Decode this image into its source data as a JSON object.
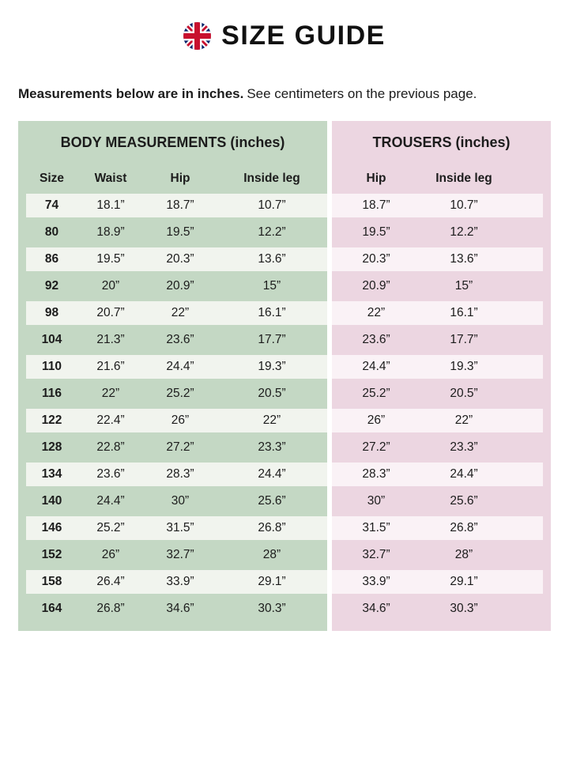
{
  "page": {
    "title": "SIZE GUIDE",
    "note_bold": "Measurements below are in inches.",
    "note_regular": "See centimeters on the previous page."
  },
  "table": {
    "body_section_title": "BODY MEASUREMENTS (inches)",
    "trousers_section_title": "TROUSERS (inches)",
    "body_columns": {
      "size": "Size",
      "waist": "Waist",
      "hip": "Hip",
      "inside_leg": "Inside leg"
    },
    "trousers_columns": {
      "hip": "Hip",
      "inside_leg": "Inside leg"
    },
    "rows": [
      {
        "size": "74",
        "waist": "18.1”",
        "hip": "18.7”",
        "inside_leg": "10.7”",
        "t_hip": "18.7”",
        "t_inside_leg": "10.7”"
      },
      {
        "size": "80",
        "waist": "18.9”",
        "hip": "19.5”",
        "inside_leg": "12.2”",
        "t_hip": "19.5”",
        "t_inside_leg": "12.2”"
      },
      {
        "size": "86",
        "waist": "19.5”",
        "hip": "20.3”",
        "inside_leg": "13.6”",
        "t_hip": "20.3”",
        "t_inside_leg": "13.6”"
      },
      {
        "size": "92",
        "waist": "20”",
        "hip": "20.9”",
        "inside_leg": "15”",
        "t_hip": "20.9”",
        "t_inside_leg": "15”"
      },
      {
        "size": "98",
        "waist": "20.7”",
        "hip": "22”",
        "inside_leg": "16.1”",
        "t_hip": "22”",
        "t_inside_leg": "16.1”"
      },
      {
        "size": "104",
        "waist": "21.3”",
        "hip": "23.6”",
        "inside_leg": "17.7”",
        "t_hip": "23.6”",
        "t_inside_leg": "17.7”"
      },
      {
        "size": "110",
        "waist": "21.6”",
        "hip": "24.4”",
        "inside_leg": "19.3”",
        "t_hip": "24.4”",
        "t_inside_leg": "19.3”"
      },
      {
        "size": "116",
        "waist": "22”",
        "hip": "25.2”",
        "inside_leg": "20.5”",
        "t_hip": "25.2”",
        "t_inside_leg": "20.5”"
      },
      {
        "size": "122",
        "waist": "22.4”",
        "hip": "26”",
        "inside_leg": "22”",
        "t_hip": "26”",
        "t_inside_leg": "22”"
      },
      {
        "size": "128",
        "waist": "22.8”",
        "hip": "27.2”",
        "inside_leg": "23.3”",
        "t_hip": "27.2”",
        "t_inside_leg": "23.3”"
      },
      {
        "size": "134",
        "waist": "23.6”",
        "hip": "28.3”",
        "inside_leg": "24.4”",
        "t_hip": "28.3”",
        "t_inside_leg": "24.4”"
      },
      {
        "size": "140",
        "waist": "24.4”",
        "hip": "30”",
        "inside_leg": "25.6”",
        "t_hip": "30”",
        "t_inside_leg": "25.6”"
      },
      {
        "size": "146",
        "waist": "25.2”",
        "hip": "31.5”",
        "inside_leg": "26.8”",
        "t_hip": "31.5”",
        "t_inside_leg": "26.8”"
      },
      {
        "size": "152",
        "waist": "26”",
        "hip": "32.7”",
        "inside_leg": "28”",
        "t_hip": "32.7”",
        "t_inside_leg": "28”"
      },
      {
        "size": "158",
        "waist": "26.4”",
        "hip": "33.9”",
        "inside_leg": "29.1”",
        "t_hip": "33.9”",
        "t_inside_leg": "29.1”"
      },
      {
        "size": "164",
        "waist": "26.8”",
        "hip": "34.6”",
        "inside_leg": "30.3”",
        "t_hip": "34.6”",
        "t_inside_leg": "30.3”"
      }
    ]
  },
  "colors": {
    "body_section_bg": "#c4d8c4",
    "body_stripe_bg": "#f1f4ee",
    "trousers_section_bg": "#ecd6e1",
    "trousers_stripe_bg": "#faf2f6",
    "flag_blue": "#012169",
    "flag_red": "#c8102e",
    "text": "#1c1c1c"
  }
}
